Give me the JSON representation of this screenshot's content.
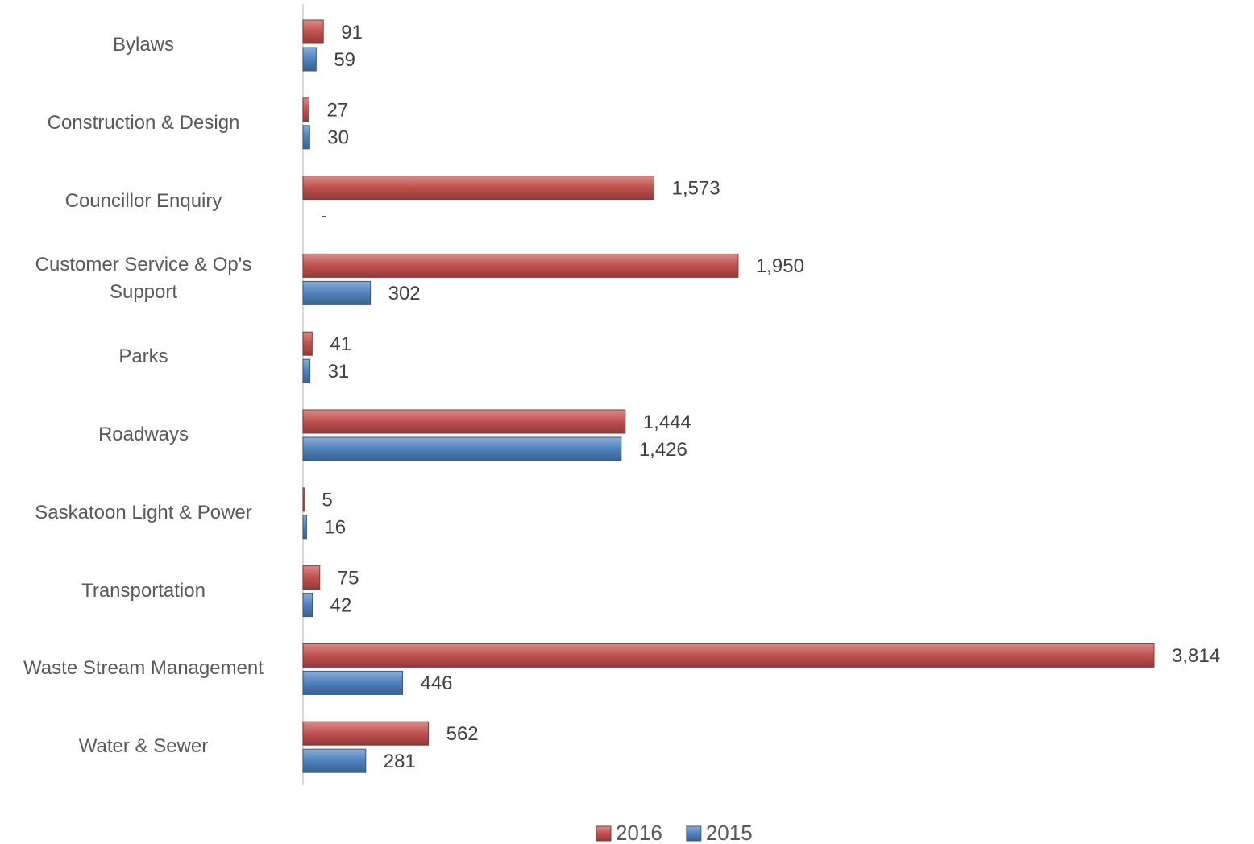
{
  "chart_data": {
    "type": "hbar",
    "categories": [
      "Bylaws",
      "Construction & Design",
      "Councillor Enquiry",
      "Customer Service & Op's Support",
      "Parks",
      "Roadways",
      "Saskatoon Light & Power",
      "Transportation",
      "Waste Stream Management",
      "Water & Sewer"
    ],
    "series": [
      {
        "name": "2016",
        "color": "#c0504d",
        "values": [
          91,
          27,
          1573,
          1950,
          41,
          1444,
          5,
          75,
          3814,
          562
        ],
        "value_labels": [
          "91",
          "27",
          "1,573",
          "1,950",
          "41",
          "1,444",
          "5",
          "75",
          "3,814",
          "562"
        ]
      },
      {
        "name": "2015",
        "color": "#4f81bd",
        "values": [
          59,
          30,
          0,
          302,
          31,
          1426,
          16,
          42,
          446,
          281
        ],
        "value_labels": [
          "59",
          "30",
          "-",
          "302",
          "31",
          "1,426",
          "16",
          "42",
          "446",
          "281"
        ]
      }
    ],
    "legend": "bottom"
  }
}
